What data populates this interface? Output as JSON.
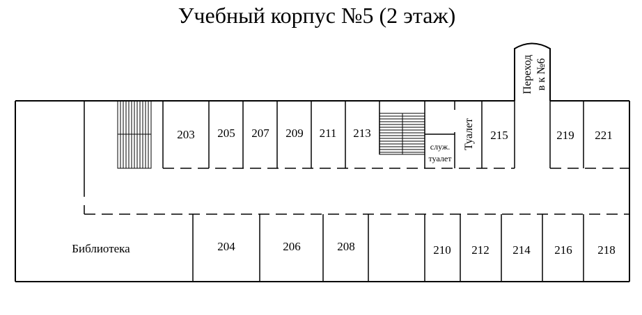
{
  "title": "Учебный корпус №5 (2 этаж)",
  "rooms_top": [
    "203",
    "205",
    "207",
    "209",
    "211",
    "213",
    "215",
    "219",
    "221"
  ],
  "rooms_bottom": [
    "204",
    "206",
    "208",
    "210",
    "212",
    "214",
    "216",
    "218"
  ],
  "library": "Библиотека",
  "service_toilet": [
    "служ.",
    "туалет"
  ],
  "toilet": "Туалет",
  "passage": [
    "Переход",
    "в к №6"
  ],
  "line_color": "#000000"
}
